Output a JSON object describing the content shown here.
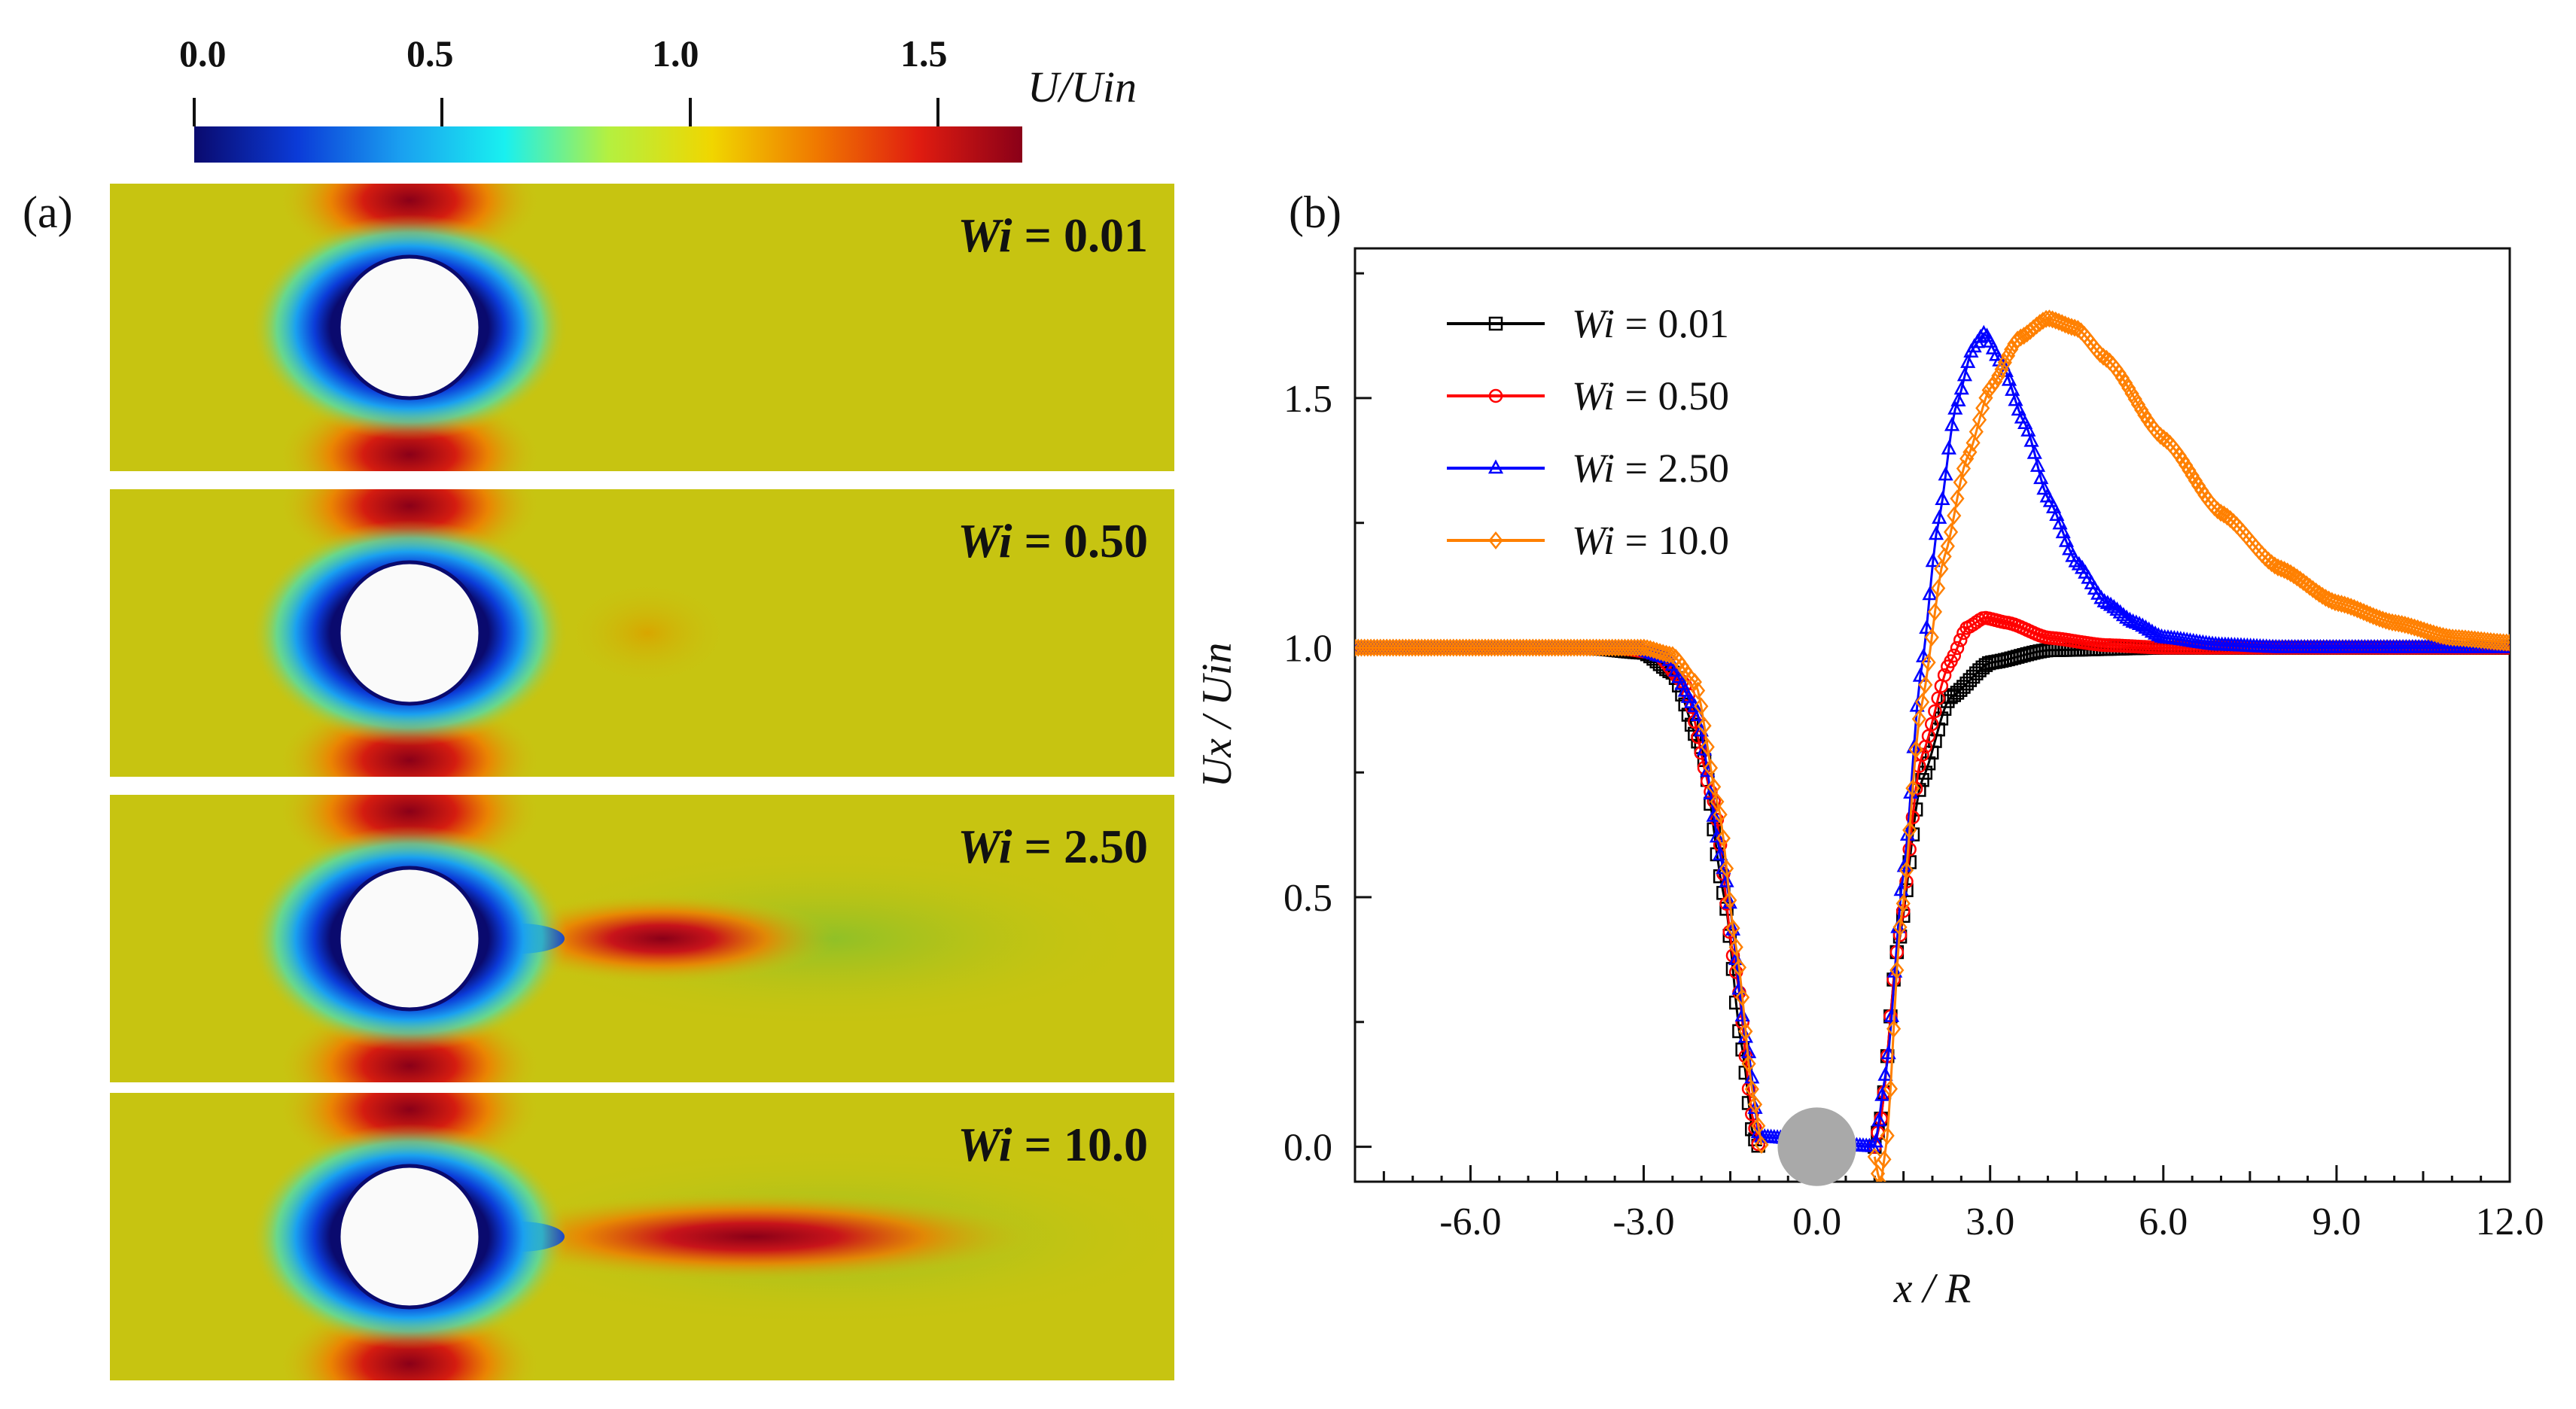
{
  "panel_a": {
    "label": "(a)",
    "colorbar": {
      "title": "U/Uin",
      "ticks": [
        "0.0",
        "0.5",
        "1.0",
        "1.5"
      ],
      "tick_values": [
        0.0,
        0.5,
        1.0,
        1.5
      ],
      "range": [
        0.0,
        1.67
      ],
      "colormap": [
        "#0a0a6e",
        "#0b3bd8",
        "#1aa0f0",
        "#19f0f0",
        "#b4f040",
        "#f0d600",
        "#f07a00",
        "#e01c10",
        "#8a0018"
      ]
    },
    "contours": [
      {
        "label": "Wi = 0.01",
        "wi": "Wi",
        "eq": " = 0.01",
        "wake_strength": 0.0
      },
      {
        "label": "Wi = 0.50",
        "wi": "Wi",
        "eq": " = 0.50",
        "wake_strength": 0.1
      },
      {
        "label": "Wi = 2.50",
        "wi": "Wi",
        "eq": " = 2.50",
        "wake_strength": 1.0
      },
      {
        "label": "Wi = 10.0",
        "wi": "Wi",
        "eq": " = 10.0",
        "wake_strength": 1.2
      }
    ],
    "colors": {
      "background_field": "#c7c411",
      "cylinder": "#fafafa"
    }
  },
  "chart_data": {
    "type": "line",
    "panel_label": "(b)",
    "title": "",
    "xlabel": "x / R",
    "ylabel": "Ux / Uin",
    "xlim": [
      -8.0,
      12.0
    ],
    "ylim": [
      -0.07,
      1.8
    ],
    "xticks": [
      -6.0,
      -3.0,
      0.0,
      3.0,
      6.0,
      9.0,
      12.0
    ],
    "xtick_labels": [
      "-6.0",
      "-3.0",
      "0.0",
      "3.0",
      "6.0",
      "9.0",
      "12.0"
    ],
    "yticks": [
      0.0,
      0.5,
      1.0,
      1.5
    ],
    "ytick_labels": [
      "0.0",
      "0.5",
      "1.0",
      "1.5"
    ],
    "legend_position": "top-left",
    "cylinder": {
      "x": 0.0,
      "y": 0.0,
      "radius": 1.0,
      "color": "#a9a9a9"
    },
    "series": [
      {
        "name": "Wi = 0.01",
        "wi": "Wi",
        "eq": " = 0.01",
        "color": "#000000",
        "marker": "square",
        "points": [
          [
            -8.0,
            1.0
          ],
          [
            -4.0,
            1.0
          ],
          [
            -3.0,
            0.99
          ],
          [
            -2.5,
            0.95
          ],
          [
            -2.0,
            0.8
          ],
          [
            -1.6,
            0.5
          ],
          [
            -1.3,
            0.2
          ],
          [
            -1.1,
            0.02
          ],
          [
            -1.0,
            0.0
          ],
          [
            1.0,
            0.0
          ],
          [
            1.1,
            0.05
          ],
          [
            1.4,
            0.4
          ],
          [
            1.8,
            0.73
          ],
          [
            2.3,
            0.9
          ],
          [
            3.0,
            0.97
          ],
          [
            4.0,
            0.995
          ],
          [
            6.0,
            1.0
          ],
          [
            12.0,
            1.0
          ]
        ]
      },
      {
        "name": "Wi = 0.50",
        "wi": "Wi",
        "eq": " = 0.50",
        "color": "#ff0000",
        "marker": "circle",
        "points": [
          [
            -8.0,
            1.0
          ],
          [
            -3.5,
            1.0
          ],
          [
            -2.8,
            0.99
          ],
          [
            -2.3,
            0.93
          ],
          [
            -1.8,
            0.7
          ],
          [
            -1.4,
            0.35
          ],
          [
            -1.1,
            0.05
          ],
          [
            -1.0,
            0.0
          ],
          [
            1.0,
            0.0
          ],
          [
            1.1,
            0.05
          ],
          [
            1.4,
            0.4
          ],
          [
            1.8,
            0.78
          ],
          [
            2.3,
            0.97
          ],
          [
            2.6,
            1.04
          ],
          [
            2.9,
            1.06
          ],
          [
            3.3,
            1.05
          ],
          [
            4.0,
            1.02
          ],
          [
            5.0,
            1.005
          ],
          [
            6.0,
            1.0
          ],
          [
            12.0,
            1.0
          ]
        ]
      },
      {
        "name": "Wi = 2.50",
        "wi": "Wi",
        "eq": " = 2.50",
        "color": "#0000ff",
        "marker": "triangle",
        "points": [
          [
            -8.0,
            1.0
          ],
          [
            -3.2,
            1.0
          ],
          [
            -2.6,
            0.98
          ],
          [
            -2.1,
            0.88
          ],
          [
            -1.6,
            0.55
          ],
          [
            -1.2,
            0.2
          ],
          [
            -1.0,
            0.02
          ],
          [
            1.0,
            0.0
          ],
          [
            1.2,
            0.15
          ],
          [
            1.5,
            0.55
          ],
          [
            1.8,
            0.95
          ],
          [
            2.1,
            1.25
          ],
          [
            2.4,
            1.48
          ],
          [
            2.7,
            1.6
          ],
          [
            2.9,
            1.63
          ],
          [
            3.2,
            1.57
          ],
          [
            3.6,
            1.45
          ],
          [
            4.0,
            1.3
          ],
          [
            4.5,
            1.17
          ],
          [
            5.0,
            1.09
          ],
          [
            5.5,
            1.05
          ],
          [
            6.0,
            1.02
          ],
          [
            7.0,
            1.005
          ],
          [
            8.0,
            1.0
          ],
          [
            12.0,
            1.0
          ]
        ]
      },
      {
        "name": "Wi = 10.0",
        "wi": "Wi",
        "eq": " = 10.0",
        "color": "#ff8000",
        "marker": "diamond",
        "points": [
          [
            -8.0,
            1.0
          ],
          [
            -3.0,
            1.0
          ],
          [
            -2.5,
            0.985
          ],
          [
            -2.1,
            0.93
          ],
          [
            -1.7,
            0.68
          ],
          [
            -1.4,
            0.4
          ],
          [
            -1.1,
            0.1
          ],
          [
            -0.95,
            0.0
          ],
          [
            1.0,
            -0.02
          ],
          [
            1.1,
            -0.08
          ],
          [
            1.2,
            0.0
          ],
          [
            1.45,
            0.45
          ],
          [
            1.8,
            0.88
          ],
          [
            2.2,
            1.18
          ],
          [
            2.6,
            1.38
          ],
          [
            3.0,
            1.52
          ],
          [
            3.5,
            1.62
          ],
          [
            4.0,
            1.66
          ],
          [
            4.5,
            1.64
          ],
          [
            5.0,
            1.58
          ],
          [
            6.0,
            1.42
          ],
          [
            7.0,
            1.27
          ],
          [
            8.0,
            1.16
          ],
          [
            9.0,
            1.09
          ],
          [
            10.0,
            1.05
          ],
          [
            11.0,
            1.02
          ],
          [
            12.0,
            1.01
          ]
        ]
      }
    ]
  }
}
